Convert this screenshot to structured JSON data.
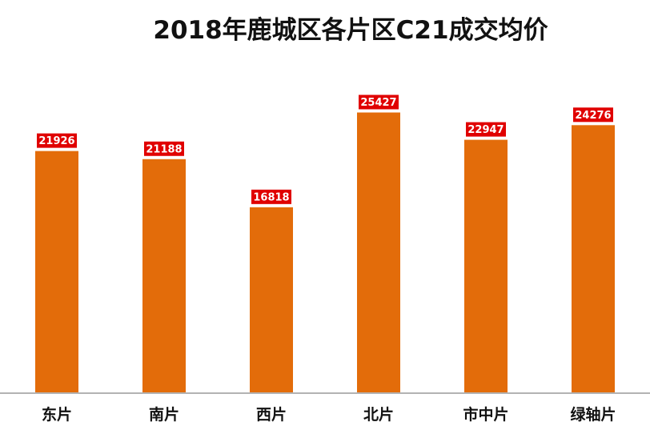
{
  "chart_data": {
    "type": "bar",
    "title": "2018年鹿城区各片区C21成交均价",
    "categories": [
      "东片",
      "南片",
      "西片",
      "北片",
      "市中片",
      "绿轴片"
    ],
    "values": [
      21926,
      21188,
      16818,
      25427,
      22947,
      24276
    ],
    "ylim": [
      0,
      27500
    ],
    "grid": false,
    "legend": "none",
    "colors": {
      "bar": "#E36C0A",
      "label_bg": "#E00000",
      "label_text": "#FFFFFF",
      "axis": "#9A9A9A"
    }
  }
}
